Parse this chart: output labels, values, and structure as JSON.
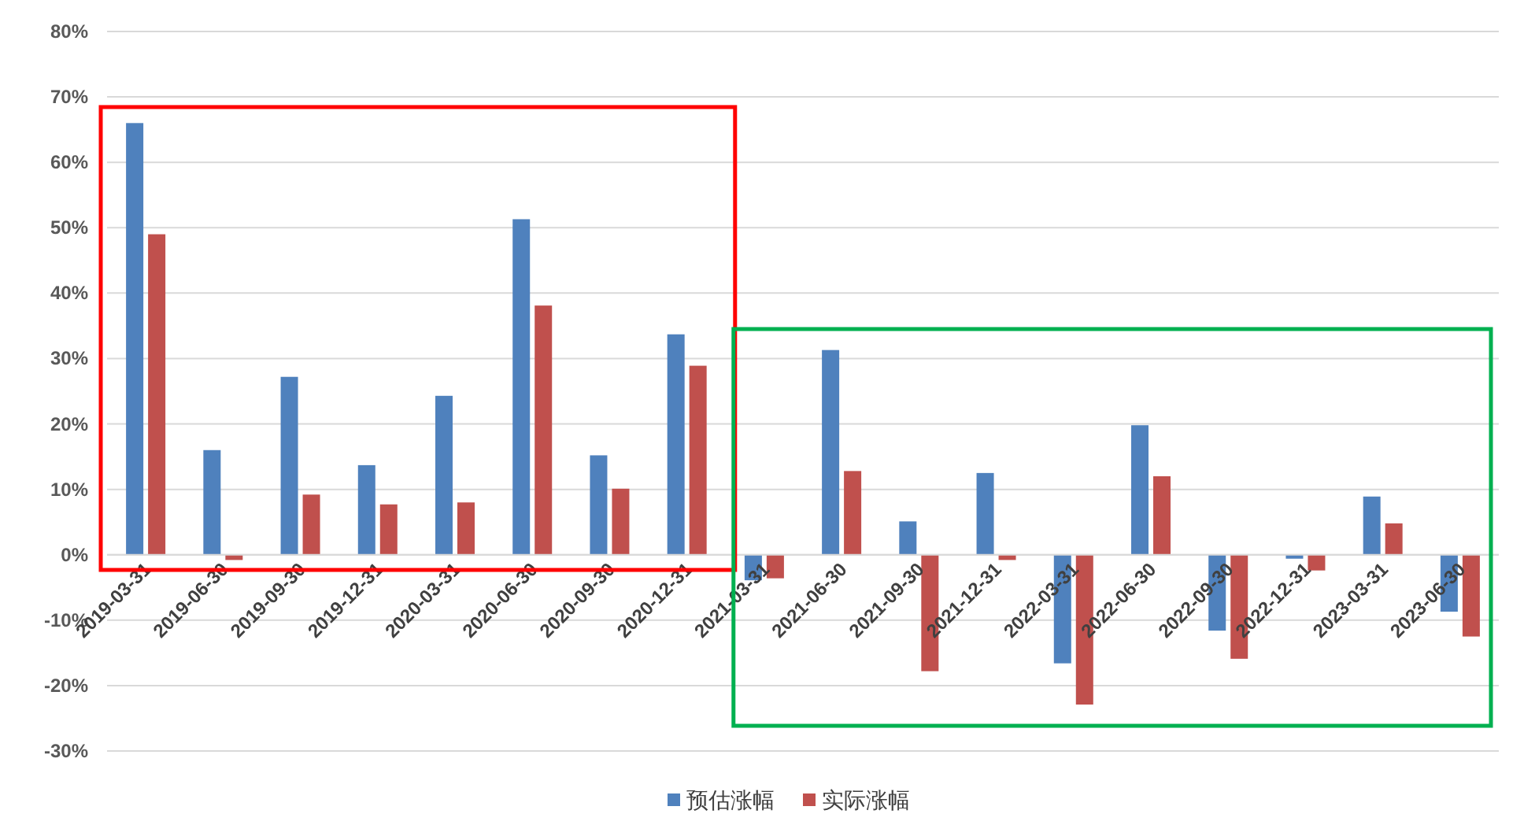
{
  "chart_data": {
    "type": "bar",
    "categories": [
      "2019-03-31",
      "2019-06-30",
      "2019-09-30",
      "2019-12-31",
      "2020-03-31",
      "2020-06-30",
      "2020-09-30",
      "2020-12-31",
      "2021-03-31",
      "2021-06-30",
      "2021-09-30",
      "2021-12-31",
      "2022-03-31",
      "2022-06-30",
      "2022-09-30",
      "2022-12-31",
      "2023-03-31",
      "2023-06-30"
    ],
    "series": [
      {
        "name": "预估涨幅",
        "color": "#4f81bd",
        "values": [
          66,
          16,
          27.2,
          13.7,
          24.3,
          51.3,
          15.2,
          33.7,
          -3.9,
          31.3,
          5.1,
          12.5,
          -16.6,
          19.8,
          -11.6,
          -0.6,
          8.9,
          -8.7
        ]
      },
      {
        "name": "实际涨幅",
        "color": "#c0504d",
        "values": [
          49,
          -0.8,
          9.2,
          7.7,
          8,
          38.1,
          10.1,
          28.9,
          -3.6,
          12.8,
          -17.8,
          -0.8,
          -22.9,
          12,
          -15.9,
          -2.4,
          4.8,
          -12.5
        ]
      }
    ],
    "ylim": [
      -30,
      80
    ],
    "yticks": [
      {
        "value": -30,
        "label": "-30%"
      },
      {
        "value": -20,
        "label": "-20%"
      },
      {
        "value": -10,
        "label": "-10%"
      },
      {
        "value": 0,
        "label": "0%"
      },
      {
        "value": 10,
        "label": "10%"
      },
      {
        "value": 20,
        "label": "20%"
      },
      {
        "value": 30,
        "label": "30%"
      },
      {
        "value": 40,
        "label": "40%"
      },
      {
        "value": 50,
        "label": "50%"
      },
      {
        "value": 60,
        "label": "60%"
      },
      {
        "value": 70,
        "label": "70%"
      },
      {
        "value": 80,
        "label": "80%"
      }
    ],
    "grid": "y",
    "legend": "bottom"
  }
}
